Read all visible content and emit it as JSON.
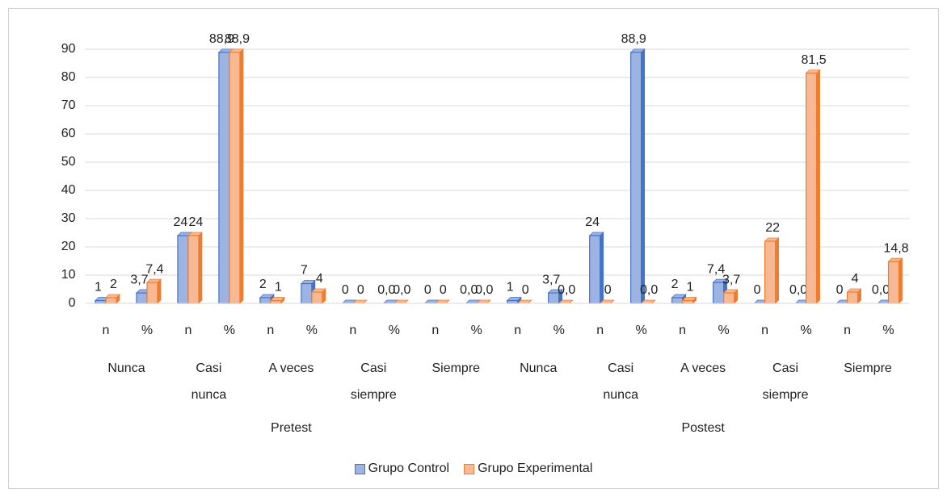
{
  "chart_data": {
    "type": "bar",
    "categories": [
      "n",
      "%",
      "n",
      "%",
      "n",
      "%",
      "n",
      "%",
      "n",
      "%",
      "n",
      "%",
      "n",
      "%",
      "n",
      "%",
      "n",
      "%",
      "n",
      "%"
    ],
    "groups": [
      "Nunca",
      "Casi nunca",
      "A veces",
      "Casi siempre",
      "Siempre",
      "Nunca",
      "Casi nunca",
      "A veces",
      "Casi siempre",
      "Siempre"
    ],
    "supergroups": [
      "Pretest",
      "Postest"
    ],
    "series": [
      {
        "name": "Grupo Control",
        "color": "#4472c4",
        "fill": "#9db4e3",
        "values": [
          1,
          3.7,
          24,
          88.9,
          2,
          7,
          0,
          0,
          0,
          0,
          1,
          3.7,
          24,
          88.9,
          2,
          7.4,
          0,
          0,
          0,
          0
        ],
        "value_labels": [
          "1",
          "3,7",
          "24",
          "88,9",
          "2",
          "7",
          "0",
          "0,0",
          "0",
          "0,0",
          "1",
          "3,7",
          "24",
          "88,9",
          "2",
          "7,4",
          "0",
          "0,0",
          "0",
          "0,0"
        ]
      },
      {
        "name": "Grupo Experimental",
        "color": "#ed7d31",
        "fill": "#f7b994",
        "values": [
          2,
          7.4,
          24,
          88.9,
          1,
          4,
          0,
          0,
          0,
          0,
          0,
          0,
          0,
          0,
          1,
          3.7,
          22,
          81.5,
          4,
          14.8
        ],
        "value_labels": [
          "2",
          "7,4",
          "24",
          "88,9",
          "1",
          "4",
          "0",
          "0,0",
          "0",
          "0,0",
          "0",
          "0,0",
          "0",
          "0,0",
          "1",
          "3,7",
          "22",
          "81,5",
          "4",
          "14,8"
        ]
      }
    ],
    "ylim": [
      0,
      90
    ],
    "yticks": [
      0,
      10,
      20,
      30,
      40,
      50,
      60,
      70,
      80,
      90
    ],
    "grid": true,
    "legend": "bottom"
  }
}
